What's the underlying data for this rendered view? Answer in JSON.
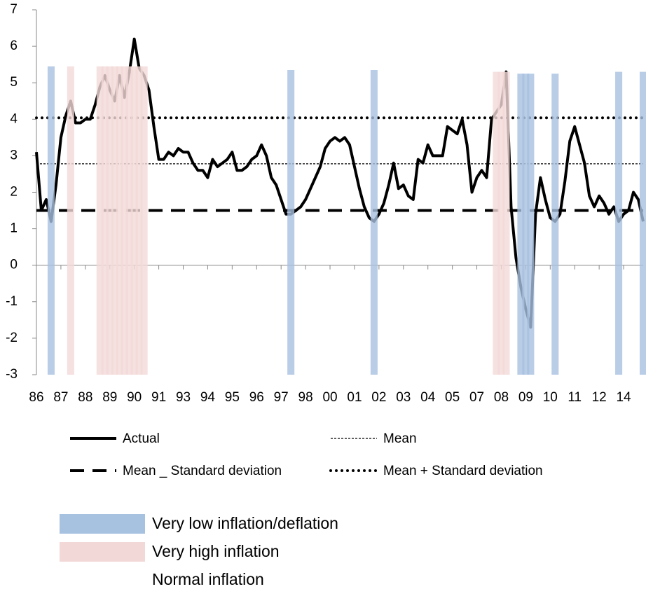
{
  "chart_data": {
    "type": "line",
    "categories": [
      "86",
      null,
      null,
      null,
      null,
      "87",
      null,
      null,
      null,
      null,
      "88",
      null,
      null,
      null,
      null,
      "89",
      null,
      null,
      null,
      null,
      "90",
      null,
      null,
      null,
      null,
      "91",
      null,
      null,
      null,
      null,
      "93",
      null,
      null,
      null,
      null,
      "94",
      null,
      null,
      null,
      null,
      "95",
      null,
      null,
      null,
      null,
      "96",
      null,
      null,
      null,
      null,
      "97",
      null,
      null,
      null,
      null,
      "98",
      null,
      null,
      null,
      null,
      "00",
      null,
      null,
      null,
      null,
      "01",
      null,
      null,
      null,
      null,
      "02",
      null,
      null,
      null,
      null,
      "03",
      null,
      null,
      null,
      null,
      "04",
      null,
      null,
      null,
      null,
      "05",
      null,
      null,
      null,
      null,
      "07",
      null,
      null,
      null,
      null,
      "08",
      null,
      null,
      null,
      null,
      "09",
      null,
      null,
      null,
      null,
      "10",
      null,
      null,
      null,
      null,
      "11",
      null,
      null,
      null,
      null,
      "12",
      null,
      null,
      null,
      null,
      "14",
      null,
      null,
      null,
      null
    ],
    "series": [
      {
        "name": "Actual",
        "color": "#000000",
        "values": [
          3.1,
          1.5,
          1.8,
          1.2,
          2.2,
          3.5,
          4.1,
          4.5,
          3.9,
          3.9,
          4.0,
          4.0,
          4.4,
          4.9,
          5.2,
          4.8,
          4.5,
          5.2,
          4.6,
          5.3,
          6.2,
          5.4,
          5.2,
          4.8,
          3.8,
          2.9,
          2.9,
          3.1,
          3.0,
          3.2,
          3.1,
          3.1,
          2.8,
          2.6,
          2.6,
          2.4,
          2.9,
          2.7,
          2.8,
          2.9,
          3.1,
          2.6,
          2.6,
          2.7,
          2.9,
          3.0,
          3.3,
          3.0,
          2.4,
          2.2,
          1.8,
          1.4,
          1.4,
          1.5,
          1.6,
          1.8,
          2.1,
          2.4,
          2.7,
          3.2,
          3.4,
          3.5,
          3.4,
          3.5,
          3.3,
          2.7,
          2.1,
          1.6,
          1.3,
          1.2,
          1.4,
          1.7,
          2.2,
          2.8,
          2.1,
          2.2,
          1.9,
          1.8,
          2.9,
          2.8,
          3.3,
          3.0,
          3.0,
          3.0,
          3.8,
          3.7,
          3.6,
          4.0,
          3.3,
          2.0,
          2.4,
          2.6,
          2.4,
          4.0,
          4.2,
          4.4,
          5.3,
          1.6,
          0.2,
          -0.6,
          -1.2,
          -1.7,
          1.4,
          2.4,
          1.8,
          1.3,
          1.2,
          1.4,
          2.3,
          3.4,
          3.8,
          3.3,
          2.8,
          1.9,
          1.6,
          1.9,
          1.7,
          1.4,
          1.6,
          1.2,
          1.4,
          1.5,
          2.0,
          1.8,
          1.2
        ]
      }
    ],
    "reference_lines": [
      {
        "name": "Mean",
        "value": 2.78,
        "color": "#000000",
        "style": "thin-dashed"
      },
      {
        "name": "Mean _ Standard deviation",
        "value": 1.5,
        "color": "#000000",
        "style": "long-dashed"
      },
      {
        "name": "Mean + Standard deviation",
        "value": 4.04,
        "color": "#000000",
        "style": "dotted"
      }
    ],
    "bands": [
      {
        "name": "Very low inflation/deflation",
        "color": "#a7c1e0",
        "values": [
          null,
          null,
          null,
          5.45,
          null,
          null,
          null,
          null,
          null,
          null,
          null,
          null,
          null,
          null,
          null,
          null,
          null,
          null,
          null,
          null,
          null,
          null,
          null,
          null,
          null,
          null,
          null,
          null,
          null,
          null,
          null,
          null,
          null,
          null,
          null,
          null,
          null,
          null,
          null,
          null,
          null,
          null,
          null,
          null,
          null,
          null,
          null,
          null,
          null,
          null,
          null,
          null,
          5.35,
          null,
          null,
          null,
          null,
          null,
          null,
          null,
          null,
          null,
          null,
          null,
          null,
          null,
          null,
          null,
          null,
          5.35,
          null,
          null,
          null,
          null,
          null,
          null,
          null,
          null,
          null,
          null,
          null,
          null,
          null,
          null,
          null,
          null,
          null,
          null,
          null,
          null,
          null,
          null,
          null,
          null,
          null,
          null,
          null,
          null,
          null,
          5.25,
          5.25,
          5.25,
          null,
          null,
          null,
          null,
          5.25,
          null,
          null,
          null,
          null,
          null,
          null,
          null,
          null,
          null,
          null,
          null,
          null,
          5.3,
          null,
          null,
          null,
          null,
          5.3
        ]
      },
      {
        "name": "Very high inflation",
        "color": "#f2d9d8",
        "values": [
          null,
          null,
          null,
          null,
          null,
          null,
          null,
          5.45,
          null,
          null,
          null,
          null,
          null,
          5.45,
          5.45,
          5.45,
          5.45,
          5.45,
          5.45,
          5.45,
          5.45,
          5.45,
          5.45,
          null,
          null,
          null,
          null,
          null,
          null,
          null,
          null,
          null,
          null,
          null,
          null,
          null,
          null,
          null,
          null,
          null,
          null,
          null,
          null,
          null,
          null,
          null,
          null,
          null,
          null,
          null,
          null,
          null,
          null,
          null,
          null,
          null,
          null,
          null,
          null,
          null,
          null,
          null,
          null,
          null,
          null,
          null,
          null,
          null,
          null,
          null,
          null,
          null,
          null,
          null,
          null,
          null,
          null,
          null,
          null,
          null,
          null,
          null,
          null,
          null,
          null,
          null,
          null,
          null,
          null,
          null,
          null,
          null,
          null,
          null,
          5.3,
          5.3,
          5.3,
          null,
          null,
          null,
          null,
          null,
          null,
          null,
          null,
          null,
          null,
          null,
          null,
          null,
          null,
          null,
          null,
          null,
          null,
          null,
          null,
          null,
          null,
          null,
          null,
          null,
          null,
          null,
          null
        ]
      },
      {
        "name": "Normal inflation",
        "color": "#ffffff",
        "values": [
          null,
          null,
          null,
          null,
          null,
          null,
          null,
          null,
          null,
          null,
          null,
          null,
          null,
          null,
          null,
          null,
          null,
          null,
          null,
          null,
          null,
          null,
          null,
          null,
          null,
          null,
          null,
          null,
          null,
          null,
          null,
          null,
          null,
          null,
          null,
          null,
          null,
          null,
          null,
          null,
          null,
          null,
          null,
          null,
          null,
          null,
          null,
          null,
          null,
          null,
          null,
          null,
          null,
          null,
          null,
          null,
          null,
          null,
          null,
          null,
          null,
          null,
          null,
          null,
          null,
          null,
          null,
          null,
          null,
          null,
          null,
          null,
          null,
          null,
          null,
          null,
          null,
          null,
          null,
          null,
          null,
          null,
          null,
          null,
          null,
          null,
          null,
          null,
          null,
          null,
          null,
          null,
          null,
          null,
          null,
          null,
          null,
          null,
          null,
          null,
          null,
          null,
          null,
          null,
          null,
          null,
          null,
          null,
          null,
          null,
          null,
          null,
          null,
          null,
          null,
          null,
          null,
          null,
          null,
          null,
          null,
          null,
          null,
          null,
          null
        ]
      }
    ],
    "ylim": [
      -3,
      7
    ],
    "yticks": [
      -3,
      -2,
      -1,
      0,
      1,
      2,
      3,
      4,
      5,
      6,
      7
    ]
  }
}
